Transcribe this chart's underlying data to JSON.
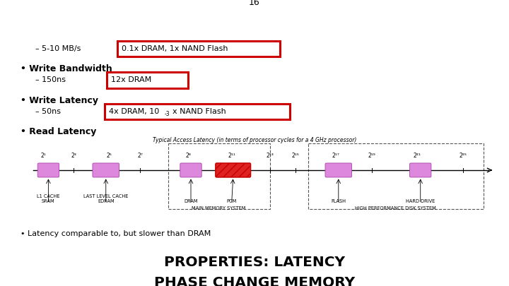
{
  "title_line1": "PHASE CHANGE MEMORY",
  "title_line2": "PROPERTIES: LATENCY",
  "bullet1": "• Latency comparable to, but slower than DRAM",
  "diagram_caption": "Typical Access Latency (in terms of processor cycles for a 4 GHz processor)",
  "read_latency_label": "• Read Latency",
  "write_latency_label": "• Write Latency",
  "write_bw_label": "• Write Bandwidth",
  "page_number": "16",
  "bg_color": "#ffffff",
  "title_color": "#000000",
  "highlight_box_color": "#cc0000",
  "bullet_color": "#000000",
  "diagram_bar_color": "#dd88dd",
  "diagram_pcm_color": "#dd2222",
  "main_memory_box_color": "#555555",
  "high_perf_box_color": "#555555"
}
